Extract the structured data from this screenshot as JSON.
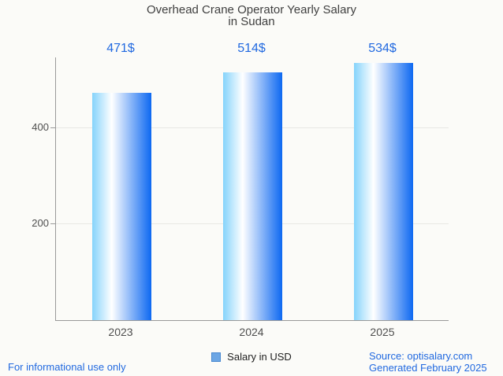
{
  "chart_data": {
    "type": "bar",
    "title": "Overhead Crane Operator Yearly Salary in Sudan",
    "title_lines": [
      "Overhead Crane Operator Yearly Salary",
      "in Sudan"
    ],
    "categories": [
      "2023",
      "2024",
      "2025"
    ],
    "series": [
      {
        "name": "Salary in USD",
        "values": [
          471,
          514,
          534
        ]
      }
    ],
    "value_labels": [
      "471$",
      "514$",
      "534$"
    ],
    "xlabel": "",
    "ylabel": "",
    "yticks": [
      200,
      400
    ],
    "ylim": [
      0,
      545
    ],
    "grid": true,
    "legend_position": "bottom"
  },
  "footer": {
    "disclaimer": "For informational use only",
    "source": "Source: optisalary.com",
    "generated": "Generated February 2025"
  },
  "colors": {
    "accent_blue": "#2169e0",
    "title_text": "#3f3f3f",
    "axis_text": "#4e4e4e",
    "axis_line": "#999999",
    "gridline": "#e8e8e4",
    "background": "#fbfbf8",
    "bar_gradient_left": "#85d3fb",
    "bar_gradient_mid": "#ffffff",
    "bar_gradient_right": "#0d68f1",
    "legend_swatch_fill": "#6ca6e4",
    "legend_swatch_border": "#4888d0"
  }
}
